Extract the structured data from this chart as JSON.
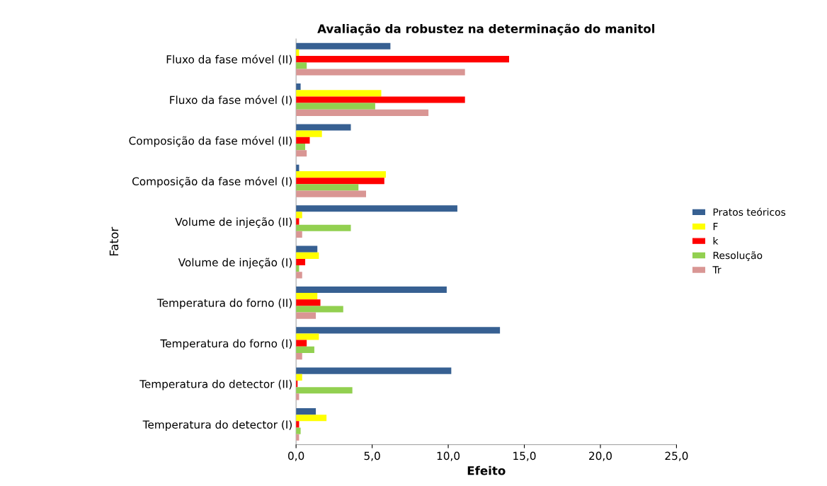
{
  "chart_data": {
    "type": "bar",
    "orientation": "horizontal",
    "title": "Avaliação da robustez na determinação do manitol",
    "xlabel": "Efeito",
    "ylabel": "Fator",
    "categories": [
      "Fluxo da fase móvel (II)",
      "Fluxo da fase móvel (I)",
      "Composição da fase móvel (II)",
      "Composição da fase móvel (I)",
      "Volume de injeção (II)",
      "Volume de injeção (I)",
      "Temperatura do forno (II)",
      "Temperatura do forno (I)",
      "Temperatura do detector (II)",
      "Temperatura do detector (I)"
    ],
    "series": [
      {
        "name": "Pratos teóricos",
        "color": "#376092",
        "values": [
          6.2,
          0.3,
          3.6,
          0.2,
          10.6,
          1.4,
          9.9,
          13.4,
          10.2,
          1.3
        ]
      },
      {
        "name": "F",
        "color": "#ffff00",
        "values": [
          0.2,
          5.6,
          1.7,
          5.9,
          0.4,
          1.5,
          1.4,
          1.5,
          0.4,
          2.0
        ]
      },
      {
        "name": "k",
        "color": "#ff0000",
        "values": [
          14.0,
          11.1,
          0.9,
          5.8,
          0.2,
          0.6,
          1.6,
          0.7,
          0.1,
          0.2
        ]
      },
      {
        "name": "Resolução",
        "color": "#92d050",
        "values": [
          0.7,
          5.2,
          0.6,
          4.1,
          3.6,
          0.2,
          3.1,
          1.2,
          3.7,
          0.3
        ]
      },
      {
        "name": "Tr",
        "color": "#d99694",
        "values": [
          11.1,
          8.7,
          0.7,
          4.6,
          0.4,
          0.4,
          1.3,
          0.4,
          0.2,
          0.2
        ]
      }
    ],
    "xlim": [
      0,
      25
    ],
    "xticks": [
      {
        "value": 0,
        "label": "0,0"
      },
      {
        "value": 5,
        "label": "5,0"
      },
      {
        "value": 10,
        "label": "10,0"
      },
      {
        "value": 15,
        "label": "15,0"
      },
      {
        "value": 20,
        "label": "20,0"
      },
      {
        "value": 25,
        "label": "25,0"
      }
    ],
    "grid": false,
    "legend": "right"
  }
}
